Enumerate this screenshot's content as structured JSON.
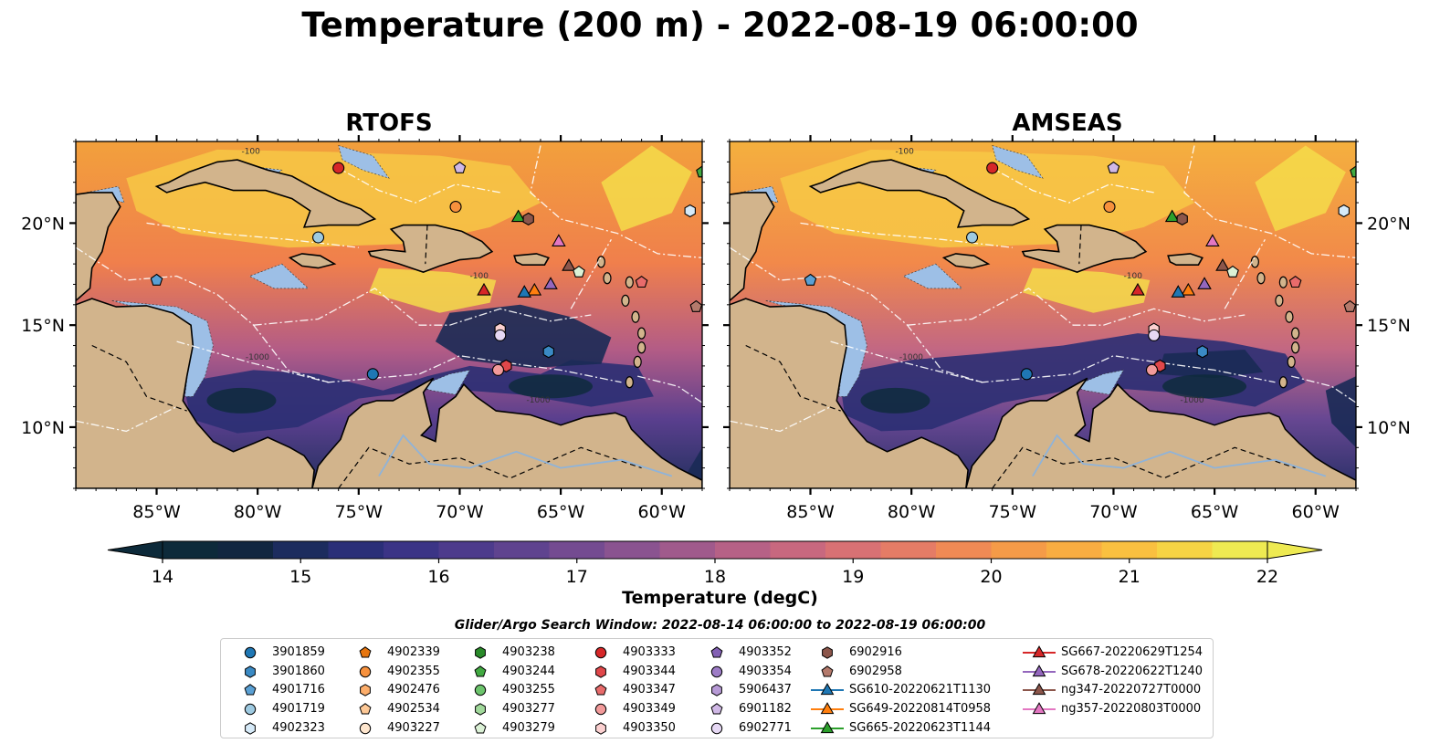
{
  "title": "Temperature (200 m) - 2022-08-19 06:00:00",
  "panels": [
    {
      "title": "RTOFS",
      "lat_labels_side": "left"
    },
    {
      "title": "AMSEAS",
      "lat_labels_side": "right"
    }
  ],
  "map": {
    "lon_range": [
      -89,
      -58
    ],
    "lat_range": [
      7,
      24
    ],
    "lon_ticks": [
      "85°W",
      "80°W",
      "75°W",
      "70°W",
      "65°W",
      "60°W"
    ],
    "lon_tick_values": [
      -85,
      -80,
      -75,
      -70,
      -65,
      -60
    ],
    "lat_ticks": [
      "20°N",
      "15°N",
      "10°N"
    ],
    "lat_tick_values": [
      20,
      15,
      10
    ],
    "contour_labels": [
      "-100",
      "-1000"
    ],
    "colors": {
      "land": "#d2b48c",
      "shallow_water": "#9dbfe6",
      "deep_cold": "#0b2537"
    }
  },
  "colorbar": {
    "label": "Temperature (degC)",
    "min": 14,
    "max": 22,
    "step": 0.5,
    "tick_labels": [
      "14",
      "15",
      "16",
      "17",
      "18",
      "19",
      "20",
      "21",
      "22"
    ],
    "tick_values": [
      14,
      15,
      16,
      17,
      18,
      19,
      20,
      21,
      22
    ],
    "extend": "both",
    "colors": [
      "#0d2a3a",
      "#112640",
      "#1c2c5e",
      "#2a2f78",
      "#3b3486",
      "#4d3b8c",
      "#5f438f",
      "#744b91",
      "#8a5390",
      "#a05a8c",
      "#b66186",
      "#c8687f",
      "#d87174",
      "#e57c66",
      "#f08a55",
      "#f59b48",
      "#f8ad42",
      "#f9c040",
      "#f6d444",
      "#eeea52"
    ]
  },
  "legend": {
    "title": "Glider/Argo Search Window: 2022-08-14 06:00:00 to 2022-08-19 06:00:00",
    "columns": [
      [
        {
          "label": "3901859",
          "marker": "circle",
          "color": "#1f77b4"
        },
        {
          "label": "3901860",
          "marker": "hexagon",
          "color": "#3a8ac4"
        },
        {
          "label": "4901716",
          "marker": "pentagon",
          "color": "#5aa0d4"
        },
        {
          "label": "4901719",
          "marker": "circle",
          "color": "#9ecae1"
        },
        {
          "label": "4902323",
          "marker": "hexagon",
          "color": "#d6eaf8"
        }
      ],
      [
        {
          "label": "4902339",
          "marker": "pentagon",
          "color": "#e6750e"
        },
        {
          "label": "4902355",
          "marker": "circle",
          "color": "#f7913d"
        },
        {
          "label": "4902476",
          "marker": "hexagon",
          "color": "#fdae6b"
        },
        {
          "label": "4902534",
          "marker": "pentagon",
          "color": "#fdc896"
        },
        {
          "label": "4903227",
          "marker": "circle",
          "color": "#fee6ce"
        }
      ],
      [
        {
          "label": "4903238",
          "marker": "hexagon",
          "color": "#2a8a2a"
        },
        {
          "label": "4903244",
          "marker": "pentagon",
          "color": "#41a941"
        },
        {
          "label": "4903255",
          "marker": "circle",
          "color": "#6cc46c"
        },
        {
          "label": "4903277",
          "marker": "hexagon",
          "color": "#a1d99b"
        },
        {
          "label": "4903279",
          "marker": "pentagon",
          "color": "#dbf1d6"
        }
      ],
      [
        {
          "label": "4903333",
          "marker": "circle",
          "color": "#d62728"
        },
        {
          "label": "4903344",
          "marker": "hexagon",
          "color": "#e0474a"
        },
        {
          "label": "4903347",
          "marker": "pentagon",
          "color": "#e86b6b"
        },
        {
          "label": "4903349",
          "marker": "circle",
          "color": "#f29a9a"
        },
        {
          "label": "4903350",
          "marker": "hexagon",
          "color": "#fbd0d0"
        }
      ],
      [
        {
          "label": "4903352",
          "marker": "pentagon",
          "color": "#8360b4"
        },
        {
          "label": "4903354",
          "marker": "circle",
          "color": "#9d7cc6"
        },
        {
          "label": "5906437",
          "marker": "hexagon",
          "color": "#b79ad6"
        },
        {
          "label": "6901182",
          "marker": "pentagon",
          "color": "#d0b8e6"
        },
        {
          "label": "6902771",
          "marker": "circle",
          "color": "#e6d8f4"
        }
      ],
      [
        {
          "label": "6902916",
          "marker": "hexagon",
          "color": "#8c564b"
        },
        {
          "label": "6902958",
          "marker": "pentagon",
          "color": "#b47a6c"
        },
        {
          "label": "SG610-20220621T1130",
          "marker": "triangle-line",
          "color": "#1f77b4"
        },
        {
          "label": "SG649-20220814T0958",
          "marker": "triangle-line",
          "color": "#ff7f0e"
        },
        {
          "label": "SG665-20220623T1144",
          "marker": "triangle-line",
          "color": "#2ca02c"
        }
      ],
      [
        {
          "label": "SG667-20220629T1254",
          "marker": "triangle-line",
          "color": "#d62728"
        },
        {
          "label": "SG678-20220622T1240",
          "marker": "triangle-line",
          "color": "#9467bd"
        },
        {
          "label": "ng347-20220727T0000",
          "marker": "triangle-line",
          "color": "#8c564b"
        },
        {
          "label": "ng357-20220803T0000",
          "marker": "triangle-line",
          "color": "#e377c2"
        }
      ]
    ]
  },
  "observations": [
    {
      "id": "4903333",
      "lon": -76.0,
      "lat": 22.7,
      "marker": "circle",
      "color": "#d62728"
    },
    {
      "id": "6901182",
      "lon": -70.0,
      "lat": 22.7,
      "marker": "pentagon",
      "color": "#d0b8e6"
    },
    {
      "id": "4903244",
      "lon": -58.0,
      "lat": 22.5,
      "marker": "pentagon",
      "color": "#41a941"
    },
    {
      "id": "4902355",
      "lon": -70.2,
      "lat": 20.8,
      "marker": "circle",
      "color": "#f7913d"
    },
    {
      "id": "SG665-20220623T1144",
      "lon": -67.1,
      "lat": 20.3,
      "marker": "triangle",
      "color": "#2ca02c"
    },
    {
      "id": "6902916",
      "lon": -66.6,
      "lat": 20.2,
      "marker": "hexagon",
      "color": "#8c564b"
    },
    {
      "id": "4902323",
      "lon": -58.6,
      "lat": 20.6,
      "marker": "hexagon",
      "color": "#d6eaf8"
    },
    {
      "id": "4901719",
      "lon": -77.0,
      "lat": 19.3,
      "marker": "circle",
      "color": "#9ecae1"
    },
    {
      "id": "ng357-20220803T0000",
      "lon": -65.1,
      "lat": 19.1,
      "marker": "triangle",
      "color": "#e377c2"
    },
    {
      "id": "ng347-20220727T0000",
      "lon": -64.6,
      "lat": 17.9,
      "marker": "triangle",
      "color": "#8c564b"
    },
    {
      "id": "4903279",
      "lon": -64.1,
      "lat": 17.6,
      "marker": "pentagon",
      "color": "#dbf1d6"
    },
    {
      "id": "4901716",
      "lon": -85.0,
      "lat": 17.2,
      "marker": "pentagon",
      "color": "#5aa0d4"
    },
    {
      "id": "4903347",
      "lon": -61.0,
      "lat": 17.1,
      "marker": "pentagon",
      "color": "#e86b6b"
    },
    {
      "id": "SG678-20220622T1240",
      "lon": -65.5,
      "lat": 17.0,
      "marker": "triangle",
      "color": "#9467bd"
    },
    {
      "id": "SG667-20220629T1254",
      "lon": -68.8,
      "lat": 16.7,
      "marker": "triangle",
      "color": "#d62728"
    },
    {
      "id": "SG649-20220814T0958",
      "lon": -66.3,
      "lat": 16.7,
      "marker": "triangle",
      "color": "#ff7f0e"
    },
    {
      "id": "SG610-20220621T1130",
      "lon": -66.8,
      "lat": 16.6,
      "marker": "triangle",
      "color": "#1f77b4"
    },
    {
      "id": "6902958",
      "lon": -58.3,
      "lat": 15.9,
      "marker": "pentagon",
      "color": "#b47a6c"
    },
    {
      "id": "4903350",
      "lon": -68.0,
      "lat": 14.8,
      "marker": "hexagon",
      "color": "#fbd0d0"
    },
    {
      "id": "6902771",
      "lon": -68.0,
      "lat": 14.5,
      "marker": "circle",
      "color": "#e6d8f4"
    },
    {
      "id": "3901860",
      "lon": -65.6,
      "lat": 13.7,
      "marker": "hexagon",
      "color": "#3a8ac4"
    },
    {
      "id": "4903344",
      "lon": -67.7,
      "lat": 13.0,
      "marker": "hexagon",
      "color": "#e0474a"
    },
    {
      "id": "4903349",
      "lon": -68.1,
      "lat": 12.8,
      "marker": "circle",
      "color": "#f29a9a"
    },
    {
      "id": "3901859",
      "lon": -74.3,
      "lat": 12.6,
      "marker": "circle",
      "color": "#1f77b4"
    }
  ]
}
